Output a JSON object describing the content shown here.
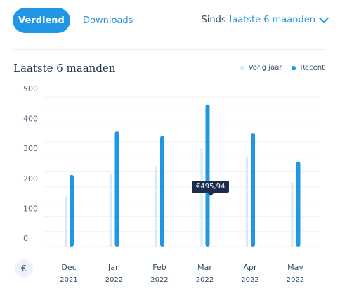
{
  "tabs": {
    "active_label": "Verdiend",
    "other_label": "Downloads"
  },
  "period": {
    "prefix": "Sinds",
    "value": "laatste 6 maanden"
  },
  "card": {
    "title": "Laatste 6 maanden"
  },
  "legend": {
    "prev_label": "Vorig jaar",
    "recent_label": "Recent"
  },
  "currency_symbol": "€",
  "tooltip": {
    "text": "€495,94"
  },
  "colors": {
    "accent": "#1f97e5",
    "previous": "#d6eaf8",
    "tooltip_bg": "#1d2b4f"
  },
  "chart_data": {
    "type": "bar",
    "categories": [
      "Dec",
      "Jan",
      "Feb",
      "Mar",
      "Apr",
      "May"
    ],
    "category_years": [
      "2021",
      "2022",
      "2022",
      "2022",
      "2022",
      "2022"
    ],
    "series": [
      {
        "name": "Vorig jaar",
        "values": [
          170,
          245,
          270,
          330,
          300,
          215
        ]
      },
      {
        "name": "Recent",
        "values": [
          240,
          385,
          370,
          475,
          380,
          285
        ]
      }
    ],
    "y_ticks": [
      0,
      100,
      200,
      300,
      400,
      500
    ],
    "ylim": [
      0,
      500
    ],
    "grid": true,
    "legend_position": "top-right",
    "title": "Laatste 6 maanden",
    "xlabel": "",
    "ylabel": ""
  }
}
